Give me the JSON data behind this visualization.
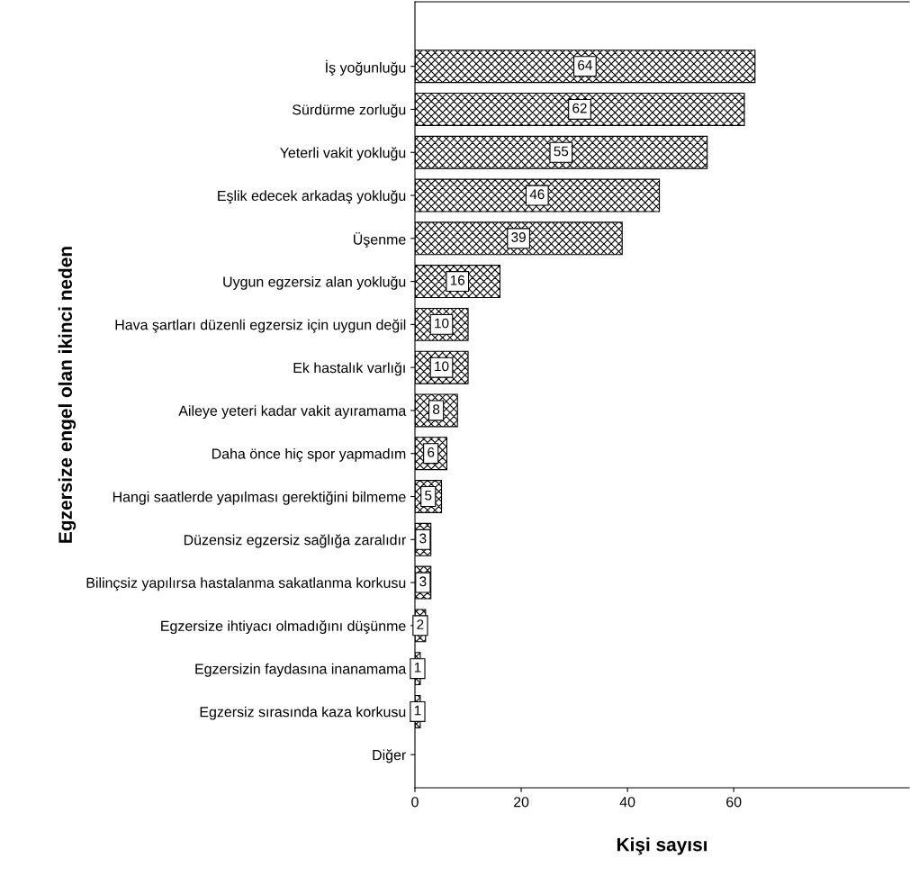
{
  "chart_data": {
    "type": "bar",
    "orientation": "horizontal",
    "xlabel": "Kişi sayısı",
    "ylabel": "Egzersize engel olan ikinci neden",
    "categories": [
      "İş yoğunluğu",
      "Sürdürme zorluğu",
      "Yeterli vakit yokluğu",
      "Eşlik edecek arkadaş yokluğu",
      "Üşenme",
      "Uygun egzersiz alan yokluğu",
      "Hava şartları düzenli egzersiz için uygun değil",
      "Ek hastalık varlığı",
      "Aileye yeteri kadar vakit ayıramama",
      "Daha önce hiç spor yapmadım",
      "Hangi saatlerde yapılması gerektiğini bilmeme",
      "Düzensiz egzersiz sağlığa zaralıdır",
      "Bilinçsiz yapılırsa hastalanma sakatlanma korkusu",
      "Egzersize ihtiyacı olmadığını düşünme",
      "Egzersizin faydasına inanamama",
      "Egzersiz sırasında kaza korkusu",
      "Diğer"
    ],
    "values": [
      64,
      62,
      55,
      46,
      39,
      16,
      10,
      10,
      8,
      6,
      5,
      3,
      3,
      2,
      1,
      1,
      null
    ],
    "value_labels": [
      "64",
      "62",
      "55",
      "46",
      "39",
      "16",
      "10",
      "10",
      "8",
      "6",
      "5",
      "3",
      "3",
      "2",
      "1",
      "1",
      null
    ],
    "color": "#000000",
    "xlim": [
      0,
      93
    ],
    "xticks": [
      0,
      20,
      40,
      60
    ],
    "grid": false,
    "legend": false
  }
}
